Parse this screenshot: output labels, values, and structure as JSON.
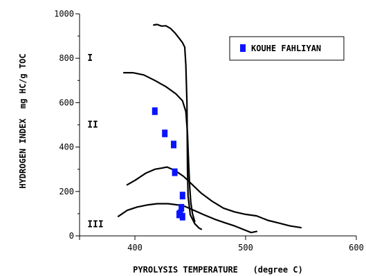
{
  "chart_data": {
    "type": "scatter",
    "xlabel": "PYROLYSIS TEMPERATURE   (degree C)",
    "ylabel": "HYDROGEN INDEX  mg HC/g TOC",
    "xlim": [
      350,
      600
    ],
    "ylim": [
      0,
      1000
    ],
    "x_ticks": [
      400,
      500,
      600
    ],
    "y_ticks": [
      0,
      200,
      400,
      600,
      800,
      1000
    ],
    "x_tick_labels": [
      "400",
      "500",
      "600"
    ],
    "y_tick_labels": [
      "0",
      "200",
      "400",
      "600",
      "800",
      "1000"
    ],
    "grid": false,
    "legend": {
      "placement": "top-right",
      "entries": [
        "KOUHE FAHLIYAN"
      ]
    },
    "marker_color": "#0a14ff",
    "line_color": "#000000",
    "series": [
      {
        "name": "KOUHE FAHLIYAN",
        "points": [
          {
            "x": 418,
            "y": 560
          },
          {
            "x": 427,
            "y": 460
          },
          {
            "x": 435,
            "y": 410
          },
          {
            "x": 436,
            "y": 285
          },
          {
            "x": 443,
            "y": 180
          },
          {
            "x": 442,
            "y": 125
          },
          {
            "x": 441,
            "y": 100
          },
          {
            "x": 440,
            "y": 95
          },
          {
            "x": 443,
            "y": 85
          }
        ]
      }
    ],
    "curves": [
      {
        "points": [
          [
            417,
            950
          ],
          [
            420,
            952
          ],
          [
            424,
            945
          ],
          [
            428,
            946
          ],
          [
            432,
            935
          ],
          [
            436,
            915
          ],
          [
            440,
            890
          ],
          [
            443,
            870
          ],
          [
            445,
            850
          ],
          [
            446,
            770
          ],
          [
            447,
            600
          ],
          [
            447.5,
            300
          ],
          [
            448,
            180
          ],
          [
            450,
            95
          ],
          [
            454,
            55
          ],
          [
            458,
            35
          ],
          [
            460,
            30
          ]
        ]
      },
      {
        "points": [
          [
            390,
            735
          ],
          [
            398,
            735
          ],
          [
            408,
            725
          ],
          [
            418,
            700
          ],
          [
            428,
            672
          ],
          [
            437,
            640
          ],
          [
            443,
            608
          ],
          [
            446,
            560
          ],
          [
            447.5,
            460
          ],
          [
            448.5,
            330
          ],
          [
            449.5,
            220
          ],
          [
            450.5,
            150
          ],
          [
            452,
            100
          ],
          [
            454,
            65
          ]
        ]
      },
      {
        "points": [
          [
            393,
            230
          ],
          [
            400,
            250
          ],
          [
            410,
            283
          ],
          [
            418,
            300
          ],
          [
            424,
            305
          ],
          [
            429,
            310
          ],
          [
            436,
            295
          ],
          [
            444,
            268
          ],
          [
            452,
            230
          ],
          [
            460,
            192
          ],
          [
            470,
            155
          ],
          [
            480,
            125
          ],
          [
            490,
            108
          ],
          [
            500,
            97
          ],
          [
            510,
            90
          ],
          [
            520,
            70
          ],
          [
            530,
            58
          ],
          [
            540,
            45
          ],
          [
            550,
            37
          ]
        ]
      },
      {
        "points": [
          [
            385,
            88
          ],
          [
            393,
            115
          ],
          [
            402,
            130
          ],
          [
            412,
            140
          ],
          [
            420,
            145
          ],
          [
            430,
            145
          ],
          [
            438,
            140
          ],
          [
            445,
            133
          ],
          [
            452,
            118
          ],
          [
            462,
            96
          ],
          [
            472,
            75
          ],
          [
            482,
            58
          ],
          [
            490,
            45
          ],
          [
            500,
            25
          ],
          [
            505,
            15
          ],
          [
            510,
            20
          ]
        ]
      }
    ],
    "region_labels": [
      {
        "text": "I",
        "x": 357,
        "y": 800
      },
      {
        "text": "II",
        "x": 357,
        "y": 500
      },
      {
        "text": "III",
        "x": 357,
        "y": 52
      }
    ]
  }
}
